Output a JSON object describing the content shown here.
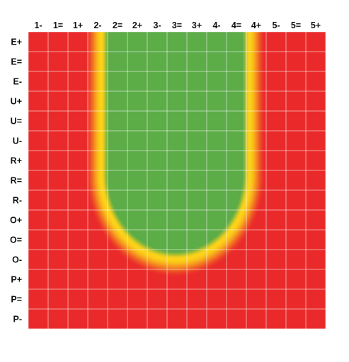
{
  "chart_data": {
    "type": "heatmap",
    "title": "",
    "xlabel": "",
    "ylabel": "",
    "x_labels": [
      "1-",
      "1=",
      "1+",
      "2-",
      "2=",
      "2+",
      "3-",
      "3=",
      "3+",
      "4-",
      "4=",
      "4+",
      "5-",
      "5=",
      "5+"
    ],
    "y_labels": [
      "E+",
      "E=",
      "E-",
      "U+",
      "U=",
      "U-",
      "R+",
      "R=",
      "R-",
      "O+",
      "O=",
      "O-",
      "P+",
      "P=",
      "P-"
    ],
    "x_axis_position": "top",
    "grid": true,
    "color_scale": {
      "low": "#ea2a2a",
      "mid": "#fdd319",
      "high": "#5cac47"
    },
    "region": {
      "description_values_in_column_units": "green zone bounded by columns and a rounded bottom",
      "left_col": 3.9,
      "right_col": 10.9,
      "bottom_row": 11.2,
      "bottom_radius_x": 3.5,
      "bottom_radius_y": 4.0,
      "transition_width": 0.9
    }
  }
}
